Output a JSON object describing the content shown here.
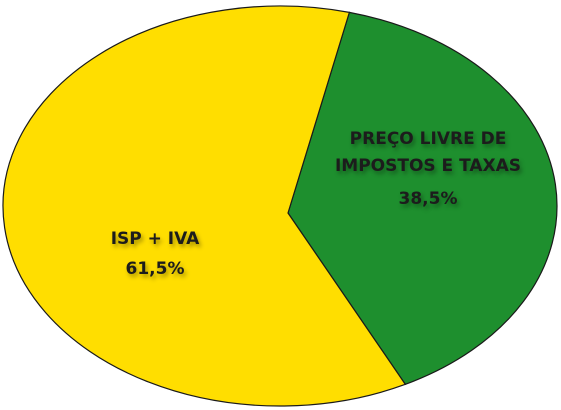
{
  "chart_data": {
    "type": "pie",
    "categories": [
      "ISP + IVA",
      "PREÇO LIVRE DE IMPOSTOS E TAXAS"
    ],
    "values": [
      61.5,
      38.5
    ],
    "value_labels": [
      "61,5%",
      "38,5%"
    ],
    "colors": [
      "#ffde00",
      "#1e8f2e"
    ]
  }
}
